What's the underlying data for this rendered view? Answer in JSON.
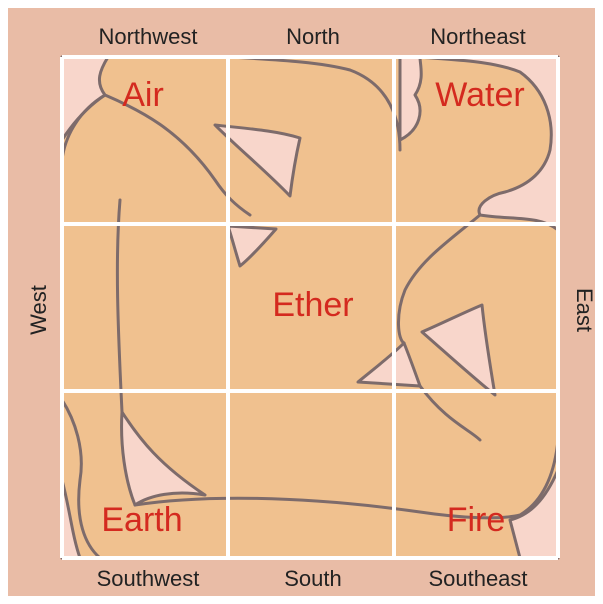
{
  "directions": {
    "northwest": "Northwest",
    "north": "North",
    "northeast": "Northeast",
    "west": "West",
    "east": "East",
    "southwest": "Southwest",
    "south": "South",
    "southeast": "Southeast"
  },
  "elements": {
    "air": "Air",
    "water": "Water",
    "ether": "Ether",
    "earth": "Earth",
    "fire": "Fire"
  }
}
